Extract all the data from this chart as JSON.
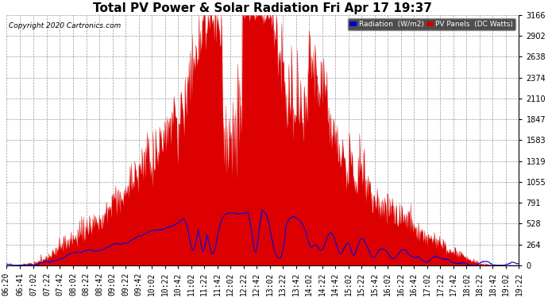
{
  "title": "Total PV Power & Solar Radiation Fri Apr 17 19:37",
  "copyright": "Copyright 2020 Cartronics.com",
  "legend_radiation": "Radiation  (W/m2)",
  "legend_pv": "PV Panels  (DC Watts)",
  "legend_radiation_bg": "#0000cc",
  "legend_pv_bg": "#cc0000",
  "bg_color": "#ffffff",
  "plot_bg_color": "#ffffff",
  "grid_color": "#999999",
  "fill_color": "#dd0000",
  "line_color": "#0000dd",
  "yticks": [
    0.0,
    263.8,
    527.6,
    791.4,
    1055.2,
    1319.0,
    1582.8,
    1846.6,
    2110.4,
    2374.2,
    2638.0,
    2901.8,
    3165.6
  ],
  "ymax": 3165.6,
  "ymin": 0.0,
  "title_fontsize": 11,
  "tick_fontsize": 7,
  "xtick_labels": [
    "06:20",
    "06:41",
    "07:02",
    "07:22",
    "07:42",
    "08:02",
    "08:22",
    "08:42",
    "09:02",
    "09:22",
    "09:42",
    "10:02",
    "10:22",
    "10:42",
    "11:02",
    "11:22",
    "11:42",
    "12:02",
    "12:22",
    "12:42",
    "13:02",
    "13:22",
    "13:42",
    "14:02",
    "14:22",
    "14:42",
    "15:02",
    "15:22",
    "15:42",
    "16:02",
    "16:22",
    "16:42",
    "17:02",
    "17:22",
    "17:42",
    "18:02",
    "18:22",
    "18:42",
    "19:02",
    "19:22"
  ]
}
